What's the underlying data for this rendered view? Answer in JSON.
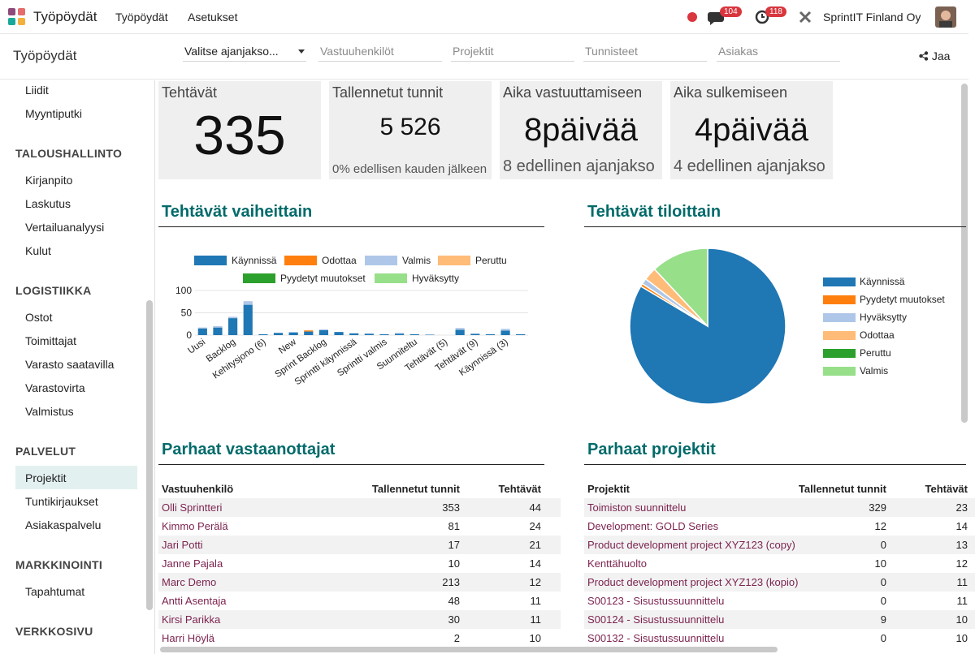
{
  "navbar": {
    "app_name": "Työpöydät",
    "menu": [
      "Työpöydät",
      "Asetukset"
    ],
    "messages_badge": 104,
    "activities_badge": 118,
    "company": "SprintIT Finland Oy"
  },
  "control_panel": {
    "breadcrumb": "Työpöydät",
    "filters": [
      "Valitse ajanjakso...",
      "Vastuuhenkilöt",
      "Projektit",
      "Tunnisteet",
      "Asiakas"
    ],
    "share": "Jaa"
  },
  "sidebar": {
    "items": [
      "Liidit",
      "Myyntiputki"
    ],
    "sections": [
      {
        "title": "TALOUSHALLINTO",
        "items": [
          "Kirjanpito",
          "Laskutus",
          "Vertailuanalyysi",
          "Kulut"
        ]
      },
      {
        "title": "LOGISTIIKKA",
        "items": [
          "Ostot",
          "Toimittajat",
          "Varasto saatavilla",
          "Varastovirta",
          "Valmistus"
        ]
      },
      {
        "title": "PALVELUT",
        "items": [
          "Projektit",
          "Tuntikirjaukset",
          "Asiakaspalvelu"
        ]
      },
      {
        "title": "MARKKINOINTI",
        "items": [
          "Tapahtumat"
        ]
      },
      {
        "title": "VERKKOSIVU"
      }
    ]
  },
  "kpis": [
    {
      "title": "Tehtävät",
      "value": "335"
    },
    {
      "title": "Tallennetut tunnit",
      "value": "5 526",
      "note": "0% edellisen kauden jälkeen"
    },
    {
      "title": "Aika vastuuttamiseen",
      "value": "8päivää",
      "note": "8 edellinen ajanjakso"
    },
    {
      "title": "Aika sulkemiseen",
      "value": "4päivää",
      "note": "4 edellinen ajanjakso"
    }
  ],
  "chart_data": [
    {
      "type": "bar",
      "stacked": true,
      "title": "Tehtävät vaiheittain",
      "categories": [
        "Uusi",
        null,
        "Backlog",
        null,
        "Kehitysjono (6)",
        null,
        "New",
        null,
        "Sprint Backlog",
        null,
        "Sprintti käynnissä",
        null,
        "Sprintti valmis",
        null,
        "Suunniteltu",
        null,
        "Tehtävät (5)",
        null,
        "Tehtävät (9)",
        null,
        "Käynnissä (3)",
        null
      ],
      "series": [
        {
          "name": "Käynnissä",
          "color": "#1f77b4",
          "values": [
            15,
            17,
            38,
            68,
            2,
            5,
            6,
            8,
            11,
            7,
            4,
            3,
            2,
            3,
            2,
            1,
            0,
            12,
            3,
            2,
            10,
            2
          ]
        },
        {
          "name": "Odottaa",
          "color": "#ff7f0e",
          "values": [
            0,
            0,
            0,
            0,
            0,
            0,
            0,
            2,
            0,
            0,
            0,
            0,
            0,
            0,
            0,
            0,
            0,
            0,
            0,
            0,
            0,
            0
          ]
        },
        {
          "name": "Valmis",
          "color": "#aec7e8",
          "values": [
            2,
            3,
            3,
            8,
            0,
            0,
            1,
            0,
            2,
            0,
            0,
            1,
            0,
            2,
            0,
            0,
            0,
            4,
            0,
            0,
            4,
            0
          ]
        },
        {
          "name": "Peruttu",
          "color": "#ffbb78",
          "values": [
            0,
            0,
            0,
            0,
            0,
            0,
            0,
            1,
            0,
            0,
            0,
            0,
            0,
            0,
            0,
            0,
            0,
            0,
            0,
            0,
            0,
            0
          ]
        },
        {
          "name": "Pyydetyt muutokset",
          "color": "#2ca02c",
          "values": [
            0,
            0,
            0,
            0,
            0,
            0,
            0,
            0,
            0,
            0,
            0,
            0,
            0,
            0,
            0,
            0,
            0,
            0,
            0,
            0,
            0,
            0
          ]
        },
        {
          "name": "Hyväksytty",
          "color": "#98df8a",
          "values": [
            0,
            0,
            0,
            0,
            0,
            0,
            0,
            0,
            0,
            0,
            0,
            0,
            0,
            0,
            0,
            0,
            0,
            0,
            0,
            0,
            0,
            0
          ]
        }
      ],
      "ylim": [
        0,
        100
      ],
      "yticks": [
        0,
        50,
        100
      ],
      "grid": true
    },
    {
      "type": "pie",
      "title": "Tehtävät tiloittain",
      "categories": [
        "Käynnissä",
        "Pyydetyt muutokset",
        "Hyväksytty",
        "Odottaa",
        "Peruttu",
        "Valmis"
      ],
      "values": [
        280,
        2,
        4,
        9,
        0,
        40
      ],
      "colors": [
        "#1f77b4",
        "#ff7f0e",
        "#aec7e8",
        "#ffbb78",
        "#2ca02c",
        "#98df8a"
      ]
    }
  ],
  "tables": [
    {
      "title": "Parhaat vastaanottajat",
      "columns": [
        "Vastuuhenkilö",
        "Tallennetut tunnit",
        "Tehtävät"
      ],
      "rows": [
        [
          "Olli Sprintteri",
          353,
          44
        ],
        [
          "Kimmo Perälä",
          81,
          24
        ],
        [
          "Jari Potti",
          17,
          21
        ],
        [
          "Janne Pajala",
          10,
          14
        ],
        [
          "Marc Demo",
          213,
          12
        ],
        [
          "Antti Asentaja",
          48,
          11
        ],
        [
          "Kirsi Parikka",
          30,
          11
        ],
        [
          "Harri Höylä",
          2,
          10
        ]
      ]
    },
    {
      "title": "Parhaat projektit",
      "columns": [
        "Projektit",
        "Tallennetut tunnit",
        "Tehtävät"
      ],
      "rows": [
        [
          "Toimiston suunnittelu",
          329,
          23
        ],
        [
          "Development: GOLD Series",
          12,
          14
        ],
        [
          "Product development project XYZ123 (copy)",
          0,
          13
        ],
        [
          "Kenttähuolto",
          10,
          12
        ],
        [
          "Product development project XYZ123 (kopio)",
          0,
          11
        ],
        [
          "S00123 - Sisustussuunnittelu",
          0,
          11
        ],
        [
          "S00124 - Sisustussuunnittelu",
          9,
          10
        ],
        [
          "S00132 - Sisustussuunnittelu",
          0,
          10
        ]
      ]
    }
  ]
}
